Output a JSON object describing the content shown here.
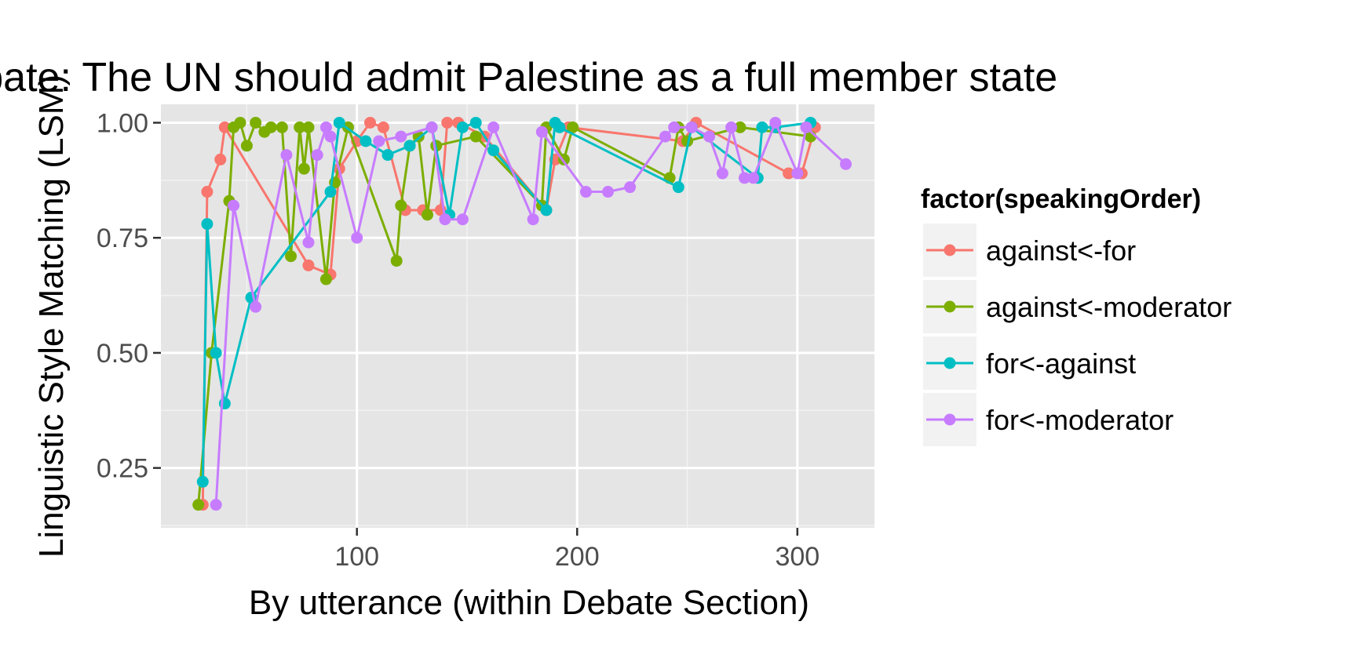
{
  "chart_data": {
    "type": "line",
    "title": "Debate: The UN should admit Palestine as a full member state",
    "xlabel": "By utterance (within Debate Section)",
    "ylabel": "Linguistic Style Matching (LSM)",
    "xlim": [
      11,
      335
    ],
    "ylim": [
      0.12,
      1.04
    ],
    "x_ticks": [
      100,
      200,
      300
    ],
    "x_tick_labels": [
      "100",
      "200",
      "300"
    ],
    "y_ticks": [
      0.25,
      0.5,
      0.75,
      1.0
    ],
    "y_tick_labels": [
      "0.25",
      "0.50",
      "0.75",
      "1.00"
    ],
    "grid": true,
    "legend": {
      "title": "factor(speakingOrder)",
      "position": "right"
    },
    "series": [
      {
        "name": "against<-for",
        "color": "#F8766D",
        "points": [
          [
            30,
            0.17
          ],
          [
            32,
            0.85
          ],
          [
            38,
            0.92
          ],
          [
            40,
            0.99
          ],
          [
            78,
            0.69
          ],
          [
            88,
            0.67
          ],
          [
            92,
            0.9
          ],
          [
            100,
            0.96
          ],
          [
            106,
            1.0
          ],
          [
            112,
            0.99
          ],
          [
            122,
            0.81
          ],
          [
            130,
            0.81
          ],
          [
            138,
            0.81
          ],
          [
            141,
            1.0
          ],
          [
            146,
            1.0
          ],
          [
            158,
            0.97
          ],
          [
            186,
            0.81
          ],
          [
            190,
            0.92
          ],
          [
            196,
            0.99
          ],
          [
            248,
            0.96
          ],
          [
            254,
            1.0
          ],
          [
            296,
            0.89
          ],
          [
            302,
            0.89
          ],
          [
            308,
            0.99
          ]
        ]
      },
      {
        "name": "against<-moderator",
        "color": "#7CAE00",
        "points": [
          [
            28,
            0.17
          ],
          [
            34,
            0.5
          ],
          [
            42,
            0.83
          ],
          [
            44,
            0.99
          ],
          [
            47,
            1.0
          ],
          [
            50,
            0.95
          ],
          [
            54,
            1.0
          ],
          [
            58,
            0.98
          ],
          [
            61,
            0.99
          ],
          [
            66,
            0.99
          ],
          [
            70,
            0.71
          ],
          [
            74,
            0.99
          ],
          [
            76,
            0.9
          ],
          [
            78,
            0.99
          ],
          [
            86,
            0.66
          ],
          [
            90,
            0.87
          ],
          [
            96,
            0.99
          ],
          [
            118,
            0.7
          ],
          [
            120,
            0.82
          ],
          [
            124,
            0.95
          ],
          [
            128,
            0.97
          ],
          [
            132,
            0.8
          ],
          [
            136,
            0.95
          ],
          [
            154,
            0.97
          ],
          [
            184,
            0.82
          ],
          [
            186,
            0.99
          ],
          [
            194,
            0.92
          ],
          [
            198,
            0.99
          ],
          [
            242,
            0.88
          ],
          [
            246,
            0.99
          ],
          [
            250,
            0.96
          ],
          [
            274,
            0.99
          ],
          [
            306,
            0.97
          ]
        ]
      },
      {
        "name": "for<-against",
        "color": "#00BFC4",
        "points": [
          [
            30,
            0.22
          ],
          [
            32,
            0.78
          ],
          [
            36,
            0.5
          ],
          [
            40,
            0.39
          ],
          [
            52,
            0.62
          ],
          [
            88,
            0.85
          ],
          [
            92,
            1.0
          ],
          [
            104,
            0.96
          ],
          [
            114,
            0.93
          ],
          [
            124,
            0.95
          ],
          [
            134,
            0.99
          ],
          [
            142,
            0.8
          ],
          [
            148,
            0.99
          ],
          [
            154,
            1.0
          ],
          [
            162,
            0.94
          ],
          [
            186,
            0.81
          ],
          [
            190,
            1.0
          ],
          [
            192,
            0.99
          ],
          [
            246,
            0.86
          ],
          [
            252,
            0.99
          ],
          [
            282,
            0.88
          ],
          [
            284,
            0.99
          ],
          [
            290,
            0.99
          ],
          [
            306,
            1.0
          ]
        ]
      },
      {
        "name": "for<-moderator",
        "color": "#C77CFF",
        "points": [
          [
            36,
            0.17
          ],
          [
            44,
            0.82
          ],
          [
            54,
            0.6
          ],
          [
            68,
            0.93
          ],
          [
            78,
            0.74
          ],
          [
            82,
            0.93
          ],
          [
            86,
            0.99
          ],
          [
            88,
            0.97
          ],
          [
            100,
            0.75
          ],
          [
            110,
            0.96
          ],
          [
            120,
            0.97
          ],
          [
            134,
            0.99
          ],
          [
            140,
            0.79
          ],
          [
            148,
            0.79
          ],
          [
            162,
            0.99
          ],
          [
            180,
            0.79
          ],
          [
            184,
            0.98
          ],
          [
            204,
            0.85
          ],
          [
            214,
            0.85
          ],
          [
            224,
            0.86
          ],
          [
            240,
            0.97
          ],
          [
            244,
            0.99
          ],
          [
            252,
            0.99
          ],
          [
            260,
            0.97
          ],
          [
            266,
            0.89
          ],
          [
            270,
            0.99
          ],
          [
            276,
            0.88
          ],
          [
            280,
            0.88
          ],
          [
            290,
            1.0
          ],
          [
            300,
            0.89
          ],
          [
            304,
            0.99
          ],
          [
            322,
            0.91
          ]
        ]
      }
    ]
  }
}
